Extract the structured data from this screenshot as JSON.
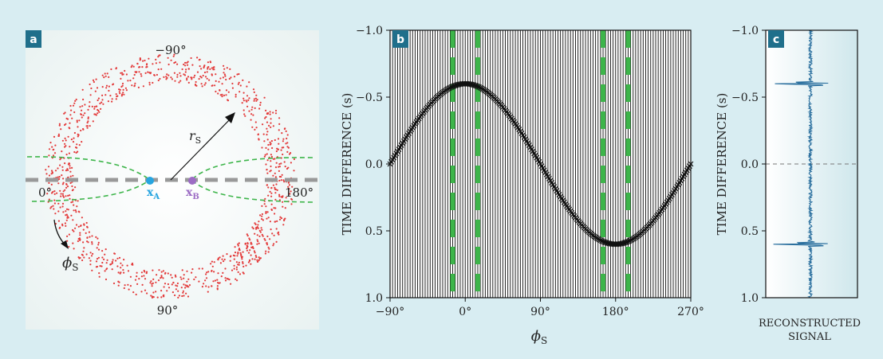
{
  "figure": {
    "background": "#d8edf2",
    "accent_badge": "#1f6f8b"
  },
  "panel_a": {
    "badge": "a",
    "top_angle": "−90°",
    "bottom_angle": "90°",
    "left_angle": "0°",
    "right_angle": "180°",
    "radius_label": "r",
    "radius_sub": "S",
    "phi_label": "ϕ",
    "phi_sub": "S",
    "xa_label": "x",
    "xa_sub": "A",
    "xb_label": "x",
    "xb_sub": "B",
    "colors": {
      "sources": "#e33a3a",
      "xa": "#27a5e0",
      "xb": "#9c6cc4",
      "hyperbola": "#3db54a",
      "axis": "#999999",
      "panel_bg": "#f4f8f8"
    }
  },
  "chart_data": [
    {
      "type": "scatter",
      "panel": "b",
      "badge": "b",
      "xlabel": "ϕ",
      "xlabel_sub": "S",
      "ylabel": "TIME DIFFERENCE (s)",
      "xlim": [
        -90,
        270
      ],
      "ylim": [
        -1.0,
        1.0
      ],
      "y_inverted": true,
      "x_ticks": [
        -90,
        0,
        90,
        180,
        270
      ],
      "x_tick_labels": [
        "−90°",
        "0°",
        "90°",
        "180°",
        "270°"
      ],
      "y_ticks": [
        -1.0,
        -0.5,
        0.0,
        0.5,
        1.0
      ],
      "y_tick_labels": [
        "−1.0",
        "−0.5",
        "0.0",
        "0.5",
        "1.0"
      ],
      "trace_spacing_deg": 3,
      "sinusoid": {
        "amplitude": 0.6,
        "peak_at_deg": 0,
        "x_start": -90,
        "x_end": 270
      },
      "stationary_phase_lines_deg": [
        -15,
        15,
        165,
        195
      ],
      "colors": {
        "traces": "#111111",
        "dashes": "#3db54a"
      }
    },
    {
      "type": "line",
      "panel": "c",
      "badge": "c",
      "xlabel": "RECONSTRUCTED",
      "xlabel2": "SIGNAL",
      "ylabel": "TIME DIFFERENCE (s)",
      "ylim": [
        -1.0,
        1.0
      ],
      "y_inverted": true,
      "y_ticks": [
        -1.0,
        -0.5,
        0.0,
        0.5,
        1.0
      ],
      "y_tick_labels": [
        "−1.0",
        "−0.5",
        "0.0",
        "0.5",
        "1.0"
      ],
      "peaks": [
        {
          "t": -0.6,
          "amplitude": 1.0
        },
        {
          "t": 0.6,
          "amplitude": 1.0
        }
      ],
      "zero_line": true,
      "colors": {
        "signal": "#2a6f9e",
        "zero_line": "#777777"
      }
    }
  ]
}
